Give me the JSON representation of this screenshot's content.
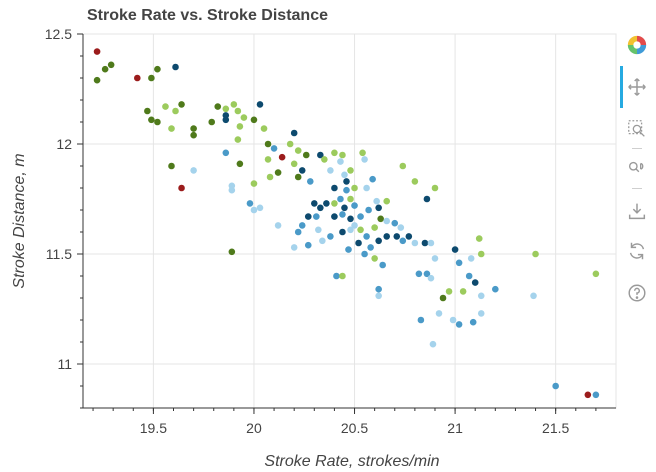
{
  "chart_data": {
    "type": "scatter",
    "title": "Stroke Rate vs. Stroke Distance",
    "xlabel": "Stroke Rate, strokes/min",
    "ylabel": "Stroke Distance, m",
    "xlim": [
      19.15,
      21.8
    ],
    "ylim": [
      10.8,
      12.5
    ],
    "xticks": [
      19.5,
      20,
      20.5,
      21,
      21.5
    ],
    "xtick_labels": [
      "19.5",
      "20",
      "20.5",
      "21",
      "21.5"
    ],
    "yticks": [
      11,
      11.5,
      12,
      12.5
    ],
    "ytick_labels": [
      "11",
      "11.5",
      "12",
      "12.5"
    ],
    "grid": true,
    "points": [
      {
        "x": 19.22,
        "y": 12.42,
        "c": "#9b1c1c"
      },
      {
        "x": 19.22,
        "y": 12.29,
        "c": "#4f7a1b"
      },
      {
        "x": 19.26,
        "y": 12.34,
        "c": "#4f7a1b"
      },
      {
        "x": 19.29,
        "y": 12.36,
        "c": "#4f7a1b"
      },
      {
        "x": 19.42,
        "y": 12.3,
        "c": "#9b1c1c"
      },
      {
        "x": 19.49,
        "y": 12.3,
        "c": "#4f7a1b"
      },
      {
        "x": 19.52,
        "y": 12.34,
        "c": "#4f7a1b"
      },
      {
        "x": 19.61,
        "y": 12.35,
        "c": "#0d4a6e"
      },
      {
        "x": 19.47,
        "y": 12.15,
        "c": "#4f7a1b"
      },
      {
        "x": 19.49,
        "y": 12.11,
        "c": "#4f7a1b"
      },
      {
        "x": 19.52,
        "y": 12.1,
        "c": "#4f7a1b"
      },
      {
        "x": 19.56,
        "y": 12.17,
        "c": "#9ccb5d"
      },
      {
        "x": 19.61,
        "y": 12.15,
        "c": "#9ccb5d"
      },
      {
        "x": 19.64,
        "y": 12.18,
        "c": "#4f7a1b"
      },
      {
        "x": 19.59,
        "y": 12.07,
        "c": "#9ccb5d"
      },
      {
        "x": 19.7,
        "y": 12.07,
        "c": "#4f7a1b"
      },
      {
        "x": 19.7,
        "y": 12.04,
        "c": "#4f7a1b"
      },
      {
        "x": 19.59,
        "y": 11.9,
        "c": "#4f7a1b"
      },
      {
        "x": 19.64,
        "y": 11.8,
        "c": "#9b1c1c"
      },
      {
        "x": 19.7,
        "y": 11.88,
        "c": "#a5d3ec"
      },
      {
        "x": 19.79,
        "y": 12.1,
        "c": "#4f7a1b"
      },
      {
        "x": 19.82,
        "y": 12.17,
        "c": "#4f7a1b"
      },
      {
        "x": 19.86,
        "y": 12.16,
        "c": "#9ccb5d"
      },
      {
        "x": 19.9,
        "y": 12.18,
        "c": "#9ccb5d"
      },
      {
        "x": 19.86,
        "y": 12.13,
        "c": "#0d4a6e"
      },
      {
        "x": 19.86,
        "y": 12.11,
        "c": "#0d4a6e"
      },
      {
        "x": 19.92,
        "y": 12.15,
        "c": "#9ccb5d"
      },
      {
        "x": 19.95,
        "y": 12.12,
        "c": "#9ccb5d"
      },
      {
        "x": 19.93,
        "y": 12.08,
        "c": "#9ccb5d"
      },
      {
        "x": 19.92,
        "y": 12.02,
        "c": "#9ccb5d"
      },
      {
        "x": 19.86,
        "y": 11.96,
        "c": "#4a9ac8"
      },
      {
        "x": 19.93,
        "y": 11.91,
        "c": "#4f7a1b"
      },
      {
        "x": 19.89,
        "y": 11.81,
        "c": "#a5d3ec"
      },
      {
        "x": 19.89,
        "y": 11.79,
        "c": "#a5d3ec"
      },
      {
        "x": 19.89,
        "y": 11.51,
        "c": "#4f7a1b"
      },
      {
        "x": 20.0,
        "y": 12.11,
        "c": "#4f7a1b"
      },
      {
        "x": 20.03,
        "y": 12.18,
        "c": "#0d4a6e"
      },
      {
        "x": 20.05,
        "y": 12.07,
        "c": "#9ccb5d"
      },
      {
        "x": 20.07,
        "y": 12.0,
        "c": "#4f7a1b"
      },
      {
        "x": 20.1,
        "y": 11.98,
        "c": "#4a9ac8"
      },
      {
        "x": 20.14,
        "y": 11.94,
        "c": "#9b1c1c"
      },
      {
        "x": 20.07,
        "y": 11.93,
        "c": "#9ccb5d"
      },
      {
        "x": 20.12,
        "y": 11.87,
        "c": "#4f7a1b"
      },
      {
        "x": 20.08,
        "y": 11.85,
        "c": "#9ccb5d"
      },
      {
        "x": 20.0,
        "y": 11.82,
        "c": "#9ccb5d"
      },
      {
        "x": 19.98,
        "y": 11.73,
        "c": "#4a9ac8"
      },
      {
        "x": 20.0,
        "y": 11.7,
        "c": "#a5d3ec"
      },
      {
        "x": 20.03,
        "y": 11.71,
        "c": "#a5d3ec"
      },
      {
        "x": 20.18,
        "y": 12.0,
        "c": "#9ccb5d"
      },
      {
        "x": 20.2,
        "y": 12.05,
        "c": "#0d4a6e"
      },
      {
        "x": 20.22,
        "y": 11.97,
        "c": "#9ccb5d"
      },
      {
        "x": 20.2,
        "y": 11.91,
        "c": "#9ccb5d"
      },
      {
        "x": 20.26,
        "y": 11.95,
        "c": "#4f7a1b"
      },
      {
        "x": 20.24,
        "y": 11.88,
        "c": "#0d4a6e"
      },
      {
        "x": 20.22,
        "y": 11.85,
        "c": "#4f7a1b"
      },
      {
        "x": 20.28,
        "y": 11.83,
        "c": "#4a9ac8"
      },
      {
        "x": 20.33,
        "y": 11.95,
        "c": "#0d4a6e"
      },
      {
        "x": 20.35,
        "y": 11.93,
        "c": "#9ccb5d"
      },
      {
        "x": 20.38,
        "y": 11.88,
        "c": "#a5d3ec"
      },
      {
        "x": 20.4,
        "y": 11.96,
        "c": "#9ccb5d"
      },
      {
        "x": 20.44,
        "y": 11.95,
        "c": "#9ccb5d"
      },
      {
        "x": 20.43,
        "y": 11.92,
        "c": "#a5d3ec"
      },
      {
        "x": 20.45,
        "y": 11.86,
        "c": "#a5d3ec"
      },
      {
        "x": 20.48,
        "y": 11.88,
        "c": "#9ccb5d"
      },
      {
        "x": 20.46,
        "y": 11.83,
        "c": "#0d4a6e"
      },
      {
        "x": 20.4,
        "y": 11.8,
        "c": "#0d4a6e"
      },
      {
        "x": 20.46,
        "y": 11.79,
        "c": "#4a9ac8"
      },
      {
        "x": 20.5,
        "y": 11.8,
        "c": "#9ccb5d"
      },
      {
        "x": 20.54,
        "y": 11.96,
        "c": "#9ccb5d"
      },
      {
        "x": 20.55,
        "y": 11.93,
        "c": "#a5d3ec"
      },
      {
        "x": 20.59,
        "y": 11.84,
        "c": "#4a9ac8"
      },
      {
        "x": 20.56,
        "y": 11.8,
        "c": "#a5d3ec"
      },
      {
        "x": 20.3,
        "y": 11.73,
        "c": "#0d4a6e"
      },
      {
        "x": 20.33,
        "y": 11.71,
        "c": "#0d4a6e"
      },
      {
        "x": 20.36,
        "y": 11.73,
        "c": "#0d4a6e"
      },
      {
        "x": 20.4,
        "y": 11.73,
        "c": "#9ccb5d"
      },
      {
        "x": 20.43,
        "y": 11.75,
        "c": "#4a9ac8"
      },
      {
        "x": 20.48,
        "y": 11.75,
        "c": "#9ccb5d"
      },
      {
        "x": 20.5,
        "y": 11.72,
        "c": "#4a9ac8"
      },
      {
        "x": 20.45,
        "y": 11.71,
        "c": "#0d4a6e"
      },
      {
        "x": 20.27,
        "y": 11.67,
        "c": "#0d4a6e"
      },
      {
        "x": 20.31,
        "y": 11.67,
        "c": "#4a9ac8"
      },
      {
        "x": 20.4,
        "y": 11.67,
        "c": "#0d4a6e"
      },
      {
        "x": 20.44,
        "y": 11.68,
        "c": "#4a9ac8"
      },
      {
        "x": 20.48,
        "y": 11.66,
        "c": "#0d4a6e"
      },
      {
        "x": 20.53,
        "y": 11.67,
        "c": "#4a9ac8"
      },
      {
        "x": 20.57,
        "y": 11.7,
        "c": "#4a9ac8"
      },
      {
        "x": 20.61,
        "y": 11.74,
        "c": "#a5d3ec"
      },
      {
        "x": 20.62,
        "y": 11.71,
        "c": "#0d4a6e"
      },
      {
        "x": 20.66,
        "y": 11.74,
        "c": "#9ccb5d"
      },
      {
        "x": 20.12,
        "y": 11.63,
        "c": "#a5d3ec"
      },
      {
        "x": 20.22,
        "y": 11.6,
        "c": "#4a9ac8"
      },
      {
        "x": 20.24,
        "y": 11.63,
        "c": "#4a9ac8"
      },
      {
        "x": 20.32,
        "y": 11.61,
        "c": "#a5d3ec"
      },
      {
        "x": 20.38,
        "y": 11.58,
        "c": "#4a9ac8"
      },
      {
        "x": 20.44,
        "y": 11.6,
        "c": "#0d4a6e"
      },
      {
        "x": 20.48,
        "y": 11.61,
        "c": "#a5d3ec"
      },
      {
        "x": 20.5,
        "y": 11.63,
        "c": "#a5d3ec"
      },
      {
        "x": 20.53,
        "y": 11.61,
        "c": "#9ccb5d"
      },
      {
        "x": 20.56,
        "y": 11.58,
        "c": "#4a9ac8"
      },
      {
        "x": 20.6,
        "y": 11.62,
        "c": "#9ccb5d"
      },
      {
        "x": 20.63,
        "y": 11.66,
        "c": "#4f7a1b"
      },
      {
        "x": 20.66,
        "y": 11.65,
        "c": "#a5d3ec"
      },
      {
        "x": 20.7,
        "y": 11.64,
        "c": "#4a9ac8"
      },
      {
        "x": 20.73,
        "y": 11.62,
        "c": "#a5d3ec"
      },
      {
        "x": 20.2,
        "y": 11.53,
        "c": "#a5d3ec"
      },
      {
        "x": 20.27,
        "y": 11.54,
        "c": "#4a9ac8"
      },
      {
        "x": 20.34,
        "y": 11.56,
        "c": "#a5d3ec"
      },
      {
        "x": 20.47,
        "y": 11.52,
        "c": "#4a9ac8"
      },
      {
        "x": 20.52,
        "y": 11.55,
        "c": "#0d4a6e"
      },
      {
        "x": 20.55,
        "y": 11.5,
        "c": "#4a9ac8"
      },
      {
        "x": 20.58,
        "y": 11.53,
        "c": "#4a9ac8"
      },
      {
        "x": 20.62,
        "y": 11.56,
        "c": "#0d4a6e"
      },
      {
        "x": 20.66,
        "y": 11.58,
        "c": "#0d4a6e"
      },
      {
        "x": 20.71,
        "y": 11.58,
        "c": "#0d4a6e"
      },
      {
        "x": 20.74,
        "y": 11.56,
        "c": "#4a9ac8"
      },
      {
        "x": 20.77,
        "y": 11.58,
        "c": "#0d4a6e"
      },
      {
        "x": 20.8,
        "y": 11.55,
        "c": "#a5d3ec"
      },
      {
        "x": 20.85,
        "y": 11.55,
        "c": "#0d4a6e"
      },
      {
        "x": 20.88,
        "y": 11.55,
        "c": "#a5d3ec"
      },
      {
        "x": 20.6,
        "y": 11.48,
        "c": "#9ccb5d"
      },
      {
        "x": 20.64,
        "y": 11.45,
        "c": "#4a9ac8"
      },
      {
        "x": 20.9,
        "y": 11.48,
        "c": "#a5d3ec"
      },
      {
        "x": 21.0,
        "y": 11.52,
        "c": "#0d4a6e"
      },
      {
        "x": 21.02,
        "y": 11.46,
        "c": "#4a9ac8"
      },
      {
        "x": 21.08,
        "y": 11.48,
        "c": "#a5d3ec"
      },
      {
        "x": 21.12,
        "y": 11.57,
        "c": "#9ccb5d"
      },
      {
        "x": 21.13,
        "y": 11.5,
        "c": "#9ccb5d"
      },
      {
        "x": 21.4,
        "y": 11.5,
        "c": "#9ccb5d"
      },
      {
        "x": 20.82,
        "y": 11.41,
        "c": "#4a9ac8"
      },
      {
        "x": 20.86,
        "y": 11.41,
        "c": "#4a9ac8"
      },
      {
        "x": 20.88,
        "y": 11.39,
        "c": "#a5d3ec"
      },
      {
        "x": 20.94,
        "y": 11.3,
        "c": "#4f7a1b"
      },
      {
        "x": 20.97,
        "y": 11.33,
        "c": "#9ccb5d"
      },
      {
        "x": 21.04,
        "y": 11.33,
        "c": "#9ccb5d"
      },
      {
        "x": 21.07,
        "y": 11.4,
        "c": "#4a9ac8"
      },
      {
        "x": 21.1,
        "y": 11.37,
        "c": "#0d4a6e"
      },
      {
        "x": 21.13,
        "y": 11.31,
        "c": "#a5d3ec"
      },
      {
        "x": 21.2,
        "y": 11.34,
        "c": "#4a9ac8"
      },
      {
        "x": 21.7,
        "y": 11.41,
        "c": "#9ccb5d"
      },
      {
        "x": 20.41,
        "y": 11.4,
        "c": "#4a9ac8"
      },
      {
        "x": 20.44,
        "y": 11.4,
        "c": "#9ccb5d"
      },
      {
        "x": 20.62,
        "y": 11.34,
        "c": "#4a9ac8"
      },
      {
        "x": 20.62,
        "y": 11.31,
        "c": "#a5d3ec"
      },
      {
        "x": 20.83,
        "y": 11.2,
        "c": "#4a9ac8"
      },
      {
        "x": 20.89,
        "y": 11.09,
        "c": "#a5d3ec"
      },
      {
        "x": 20.92,
        "y": 11.23,
        "c": "#a5d3ec"
      },
      {
        "x": 20.99,
        "y": 11.2,
        "c": "#a5d3ec"
      },
      {
        "x": 21.02,
        "y": 11.18,
        "c": "#4a9ac8"
      },
      {
        "x": 21.09,
        "y": 11.19,
        "c": "#4a9ac8"
      },
      {
        "x": 21.13,
        "y": 11.23,
        "c": "#a5d3ec"
      },
      {
        "x": 21.39,
        "y": 11.31,
        "c": "#a5d3ec"
      },
      {
        "x": 21.5,
        "y": 10.9,
        "c": "#4a9ac8"
      },
      {
        "x": 21.66,
        "y": 10.86,
        "c": "#9b1c1c"
      },
      {
        "x": 21.7,
        "y": 10.86,
        "c": "#4a9ac8"
      },
      {
        "x": 20.86,
        "y": 11.75,
        "c": "#0d4a6e"
      },
      {
        "x": 20.9,
        "y": 11.8,
        "c": "#9ccb5d"
      },
      {
        "x": 20.8,
        "y": 11.83,
        "c": "#9ccb5d"
      },
      {
        "x": 20.74,
        "y": 11.9,
        "c": "#9ccb5d"
      }
    ]
  },
  "toolbar": {
    "tools": [
      {
        "name": "bokeh-logo-icon",
        "interactable": false
      },
      {
        "name": "pan-icon",
        "interactable": true
      },
      {
        "name": "box-zoom-icon",
        "interactable": true
      },
      {
        "name": "wheel-zoom-icon",
        "interactable": true
      },
      {
        "name": "save-icon",
        "interactable": true
      },
      {
        "name": "reset-icon",
        "interactable": true
      },
      {
        "name": "help-icon",
        "interactable": true
      }
    ]
  },
  "colors": {
    "dark_red": "#9b1c1c",
    "dark_green": "#4f7a1b",
    "light_green": "#9ccb5d",
    "dark_blue": "#0d4a6e",
    "mid_blue": "#4a9ac8",
    "light_blue": "#a5d3ec",
    "active_tool": "#26aae1"
  }
}
